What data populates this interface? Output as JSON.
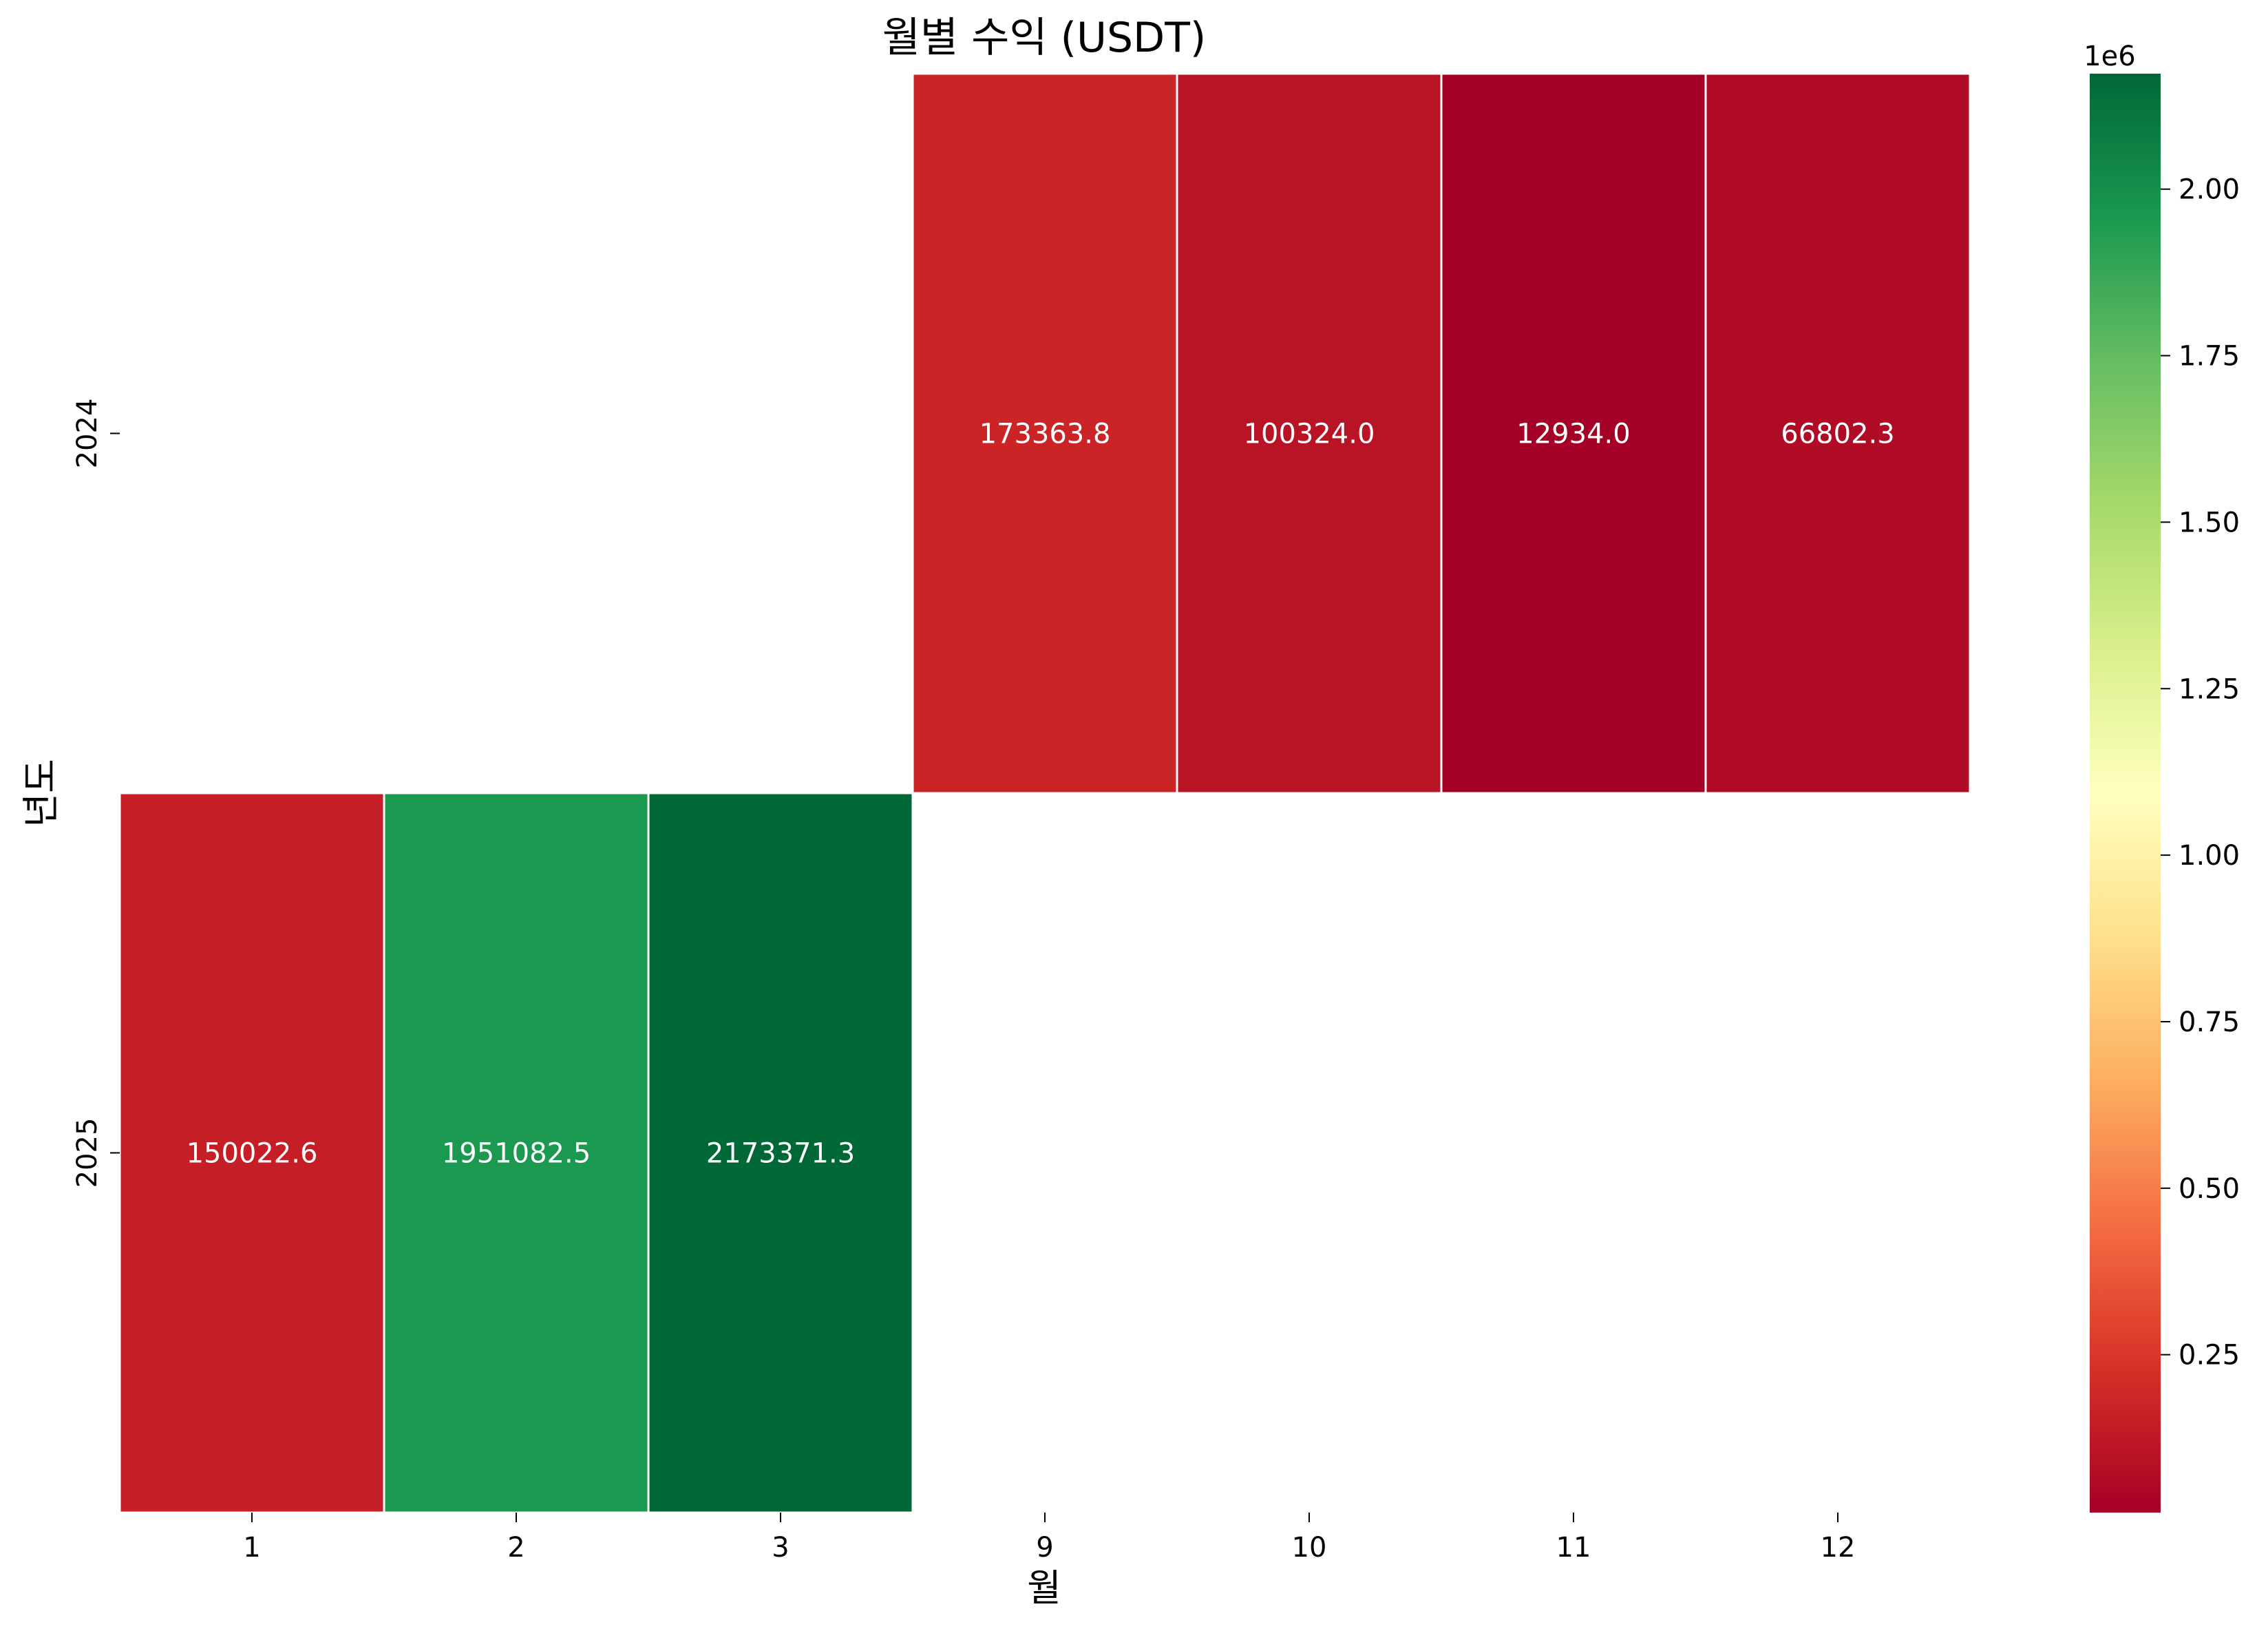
{
  "chart_data": {
    "type": "heatmap",
    "title": "월별 수익 (USDT)",
    "xlabel": "월",
    "ylabel": "년도",
    "x_categories": [
      "1",
      "2",
      "3",
      "9",
      "10",
      "11",
      "12"
    ],
    "y_categories": [
      "2024",
      "2025"
    ],
    "cells": [
      {
        "year": "2024",
        "month": "9",
        "value": 173363.8,
        "label": "173363.8"
      },
      {
        "year": "2024",
        "month": "10",
        "value": 100324.0,
        "label": "100324.0"
      },
      {
        "year": "2024",
        "month": "11",
        "value": 12934.0,
        "label": "12934.0"
      },
      {
        "year": "2024",
        "month": "12",
        "value": 66802.3,
        "label": "66802.3"
      },
      {
        "year": "2025",
        "month": "1",
        "value": 150022.6,
        "label": "150022.6"
      },
      {
        "year": "2025",
        "month": "2",
        "value": 1951082.5,
        "label": "1951082.5"
      },
      {
        "year": "2025",
        "month": "3",
        "value": 2173371.3,
        "label": "2173371.3"
      }
    ],
    "colorbar": {
      "colormap": "RdYlGn",
      "vmin": 12934.0,
      "vmax": 2173371.3,
      "ticks": [
        0.25,
        0.5,
        0.75,
        1.0,
        1.25,
        1.5,
        1.75,
        2.0
      ],
      "tick_labels": [
        "0.25",
        "0.50",
        "0.75",
        "1.00",
        "1.25",
        "1.50",
        "1.75",
        "2.00"
      ],
      "multiplier": 1000000,
      "offset_label": "1e6"
    },
    "grid": false,
    "colors": {
      "cell_border": "#ffffff",
      "annotation_text": "#ffffff",
      "axis_text": "#000000"
    }
  }
}
